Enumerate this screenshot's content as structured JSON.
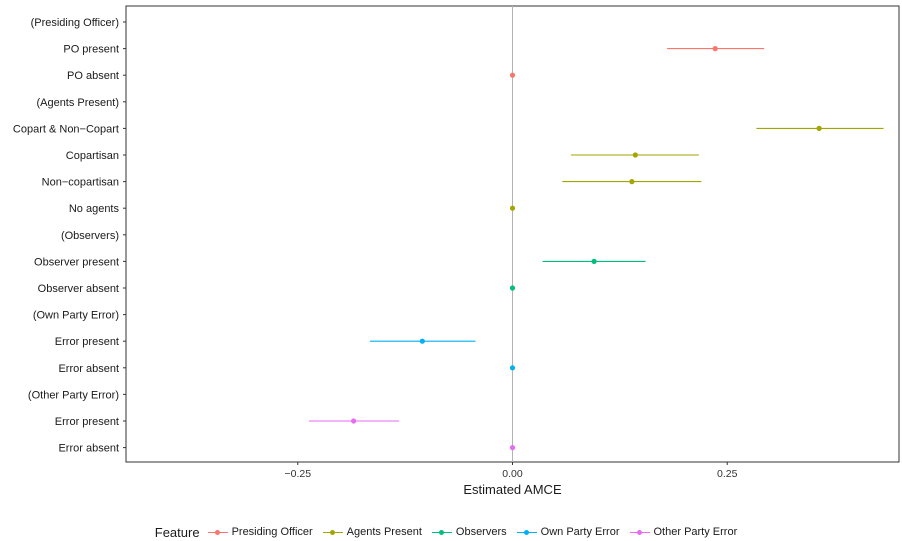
{
  "chart_data": {
    "type": "scatter",
    "xlabel": "Estimated AMCE",
    "xlim": [
      -0.45,
      0.45
    ],
    "xticks": [
      -0.25,
      0.0,
      0.25
    ],
    "xtick_labels": [
      "−0.25",
      "0.00",
      "0.25"
    ],
    "vline": 0,
    "grid": false,
    "legend": {
      "position": "bottom",
      "title": "Feature",
      "entries": [
        {
          "name": "Presiding Officer",
          "color": "#F8766D"
        },
        {
          "name": "Agents Present",
          "color": "#A3A500"
        },
        {
          "name": "Observers",
          "color": "#00BF7D"
        },
        {
          "name": "Own Party Error",
          "color": "#00B0F6"
        },
        {
          "name": "Other Party Error",
          "color": "#E76BF3"
        }
      ]
    },
    "rows": [
      {
        "label": "(Presiding Officer)",
        "header": true
      },
      {
        "label": "PO present",
        "series": 0,
        "estimate": 0.236,
        "lower": 0.18,
        "upper": 0.293
      },
      {
        "label": "PO absent",
        "series": 0,
        "estimate": 0.0,
        "lower": 0.0,
        "upper": 0.0
      },
      {
        "label": "(Agents Present)",
        "header": true
      },
      {
        "label": "Copart & Non−Copart",
        "series": 1,
        "estimate": 0.357,
        "lower": 0.284,
        "upper": 0.432
      },
      {
        "label": "Copartisan",
        "series": 1,
        "estimate": 0.143,
        "lower": 0.068,
        "upper": 0.217
      },
      {
        "label": "Non−copartisan",
        "series": 1,
        "estimate": 0.139,
        "lower": 0.058,
        "upper": 0.22
      },
      {
        "label": "No agents",
        "series": 1,
        "estimate": 0.0,
        "lower": 0.0,
        "upper": 0.0
      },
      {
        "label": "(Observers)",
        "header": true
      },
      {
        "label": "Observer present",
        "series": 2,
        "estimate": 0.095,
        "lower": 0.035,
        "upper": 0.155
      },
      {
        "label": "Observer absent",
        "series": 2,
        "estimate": 0.0,
        "lower": 0.0,
        "upper": 0.0
      },
      {
        "label": "(Own Party Error)",
        "header": true
      },
      {
        "label": "Error present",
        "series": 3,
        "estimate": -0.105,
        "lower": -0.166,
        "upper": -0.043
      },
      {
        "label": "Error absent",
        "series": 3,
        "estimate": 0.0,
        "lower": 0.0,
        "upper": 0.0
      },
      {
        "label": "(Other Party Error)",
        "header": true
      },
      {
        "label": "Error present",
        "series": 4,
        "estimate": -0.185,
        "lower": -0.237,
        "upper": -0.132
      },
      {
        "label": "Error absent",
        "series": 4,
        "estimate": 0.0,
        "lower": 0.0,
        "upper": 0.0
      }
    ]
  }
}
